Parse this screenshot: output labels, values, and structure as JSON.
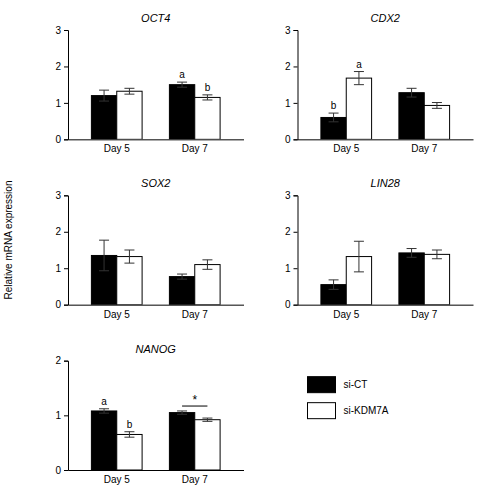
{
  "chart_data": [
    {
      "type": "bar",
      "title": "OCT4",
      "categories": [
        "Day 5",
        "Day 7"
      ],
      "series": [
        {
          "name": "si-CT",
          "color": "#000000",
          "values": [
            1.2,
            1.5
          ],
          "errors": [
            0.15,
            0.07
          ]
        },
        {
          "name": "si-KDM7A",
          "color": "#ffffff",
          "values": [
            1.32,
            1.15
          ],
          "errors": [
            0.08,
            0.07
          ]
        }
      ],
      "ylim": [
        0,
        3
      ],
      "yticks": [
        0,
        1,
        2,
        3
      ],
      "annotations": [
        {
          "text": "a",
          "x": "Day 7",
          "series": 0
        },
        {
          "text": "b",
          "x": "Day 7",
          "series": 1
        }
      ]
    },
    {
      "type": "bar",
      "title": "CDX2",
      "categories": [
        "Day 5",
        "Day 7"
      ],
      "series": [
        {
          "color": "#000000",
          "values": [
            0.6,
            1.28
          ],
          "errors": [
            0.12,
            0.12
          ]
        },
        {
          "color": "#ffffff",
          "values": [
            1.68,
            0.93
          ],
          "errors": [
            0.18,
            0.08
          ]
        }
      ],
      "ylim": [
        0,
        3
      ],
      "yticks": [
        0,
        1,
        2,
        3
      ],
      "annotations": [
        {
          "text": "b",
          "x": "Day 5",
          "series": 0
        },
        {
          "text": "a",
          "x": "Day 5",
          "series": 1
        }
      ]
    },
    {
      "type": "bar",
      "title": "SOX2",
      "categories": [
        "Day 5",
        "Day 7"
      ],
      "series": [
        {
          "color": "#000000",
          "values": [
            1.35,
            0.77
          ],
          "errors": [
            0.42,
            0.07
          ]
        },
        {
          "color": "#ffffff",
          "values": [
            1.32,
            1.1
          ],
          "errors": [
            0.18,
            0.13
          ]
        }
      ],
      "ylim": [
        0,
        3
      ],
      "yticks": [
        0,
        1,
        2,
        3
      ]
    },
    {
      "type": "bar",
      "title": "LIN28",
      "categories": [
        "Day 5",
        "Day 7"
      ],
      "series": [
        {
          "color": "#000000",
          "values": [
            0.55,
            1.42
          ],
          "errors": [
            0.13,
            0.12
          ]
        },
        {
          "color": "#ffffff",
          "values": [
            1.32,
            1.38
          ],
          "errors": [
            0.42,
            0.12
          ]
        }
      ],
      "ylim": [
        0,
        3
      ],
      "yticks": [
        0,
        1,
        2,
        3
      ]
    },
    {
      "type": "bar",
      "title": "NANOG",
      "categories": [
        "Day 5",
        "Day 7"
      ],
      "series": [
        {
          "color": "#000000",
          "values": [
            1.08,
            1.05
          ],
          "errors": [
            0.04,
            0.03
          ]
        },
        {
          "color": "#ffffff",
          "values": [
            0.65,
            0.92
          ],
          "errors": [
            0.05,
            0.03
          ]
        }
      ],
      "ylim": [
        0,
        2
      ],
      "yticks": [
        0,
        1,
        2
      ],
      "annotations": [
        {
          "text": "a",
          "x": "Day 5",
          "series": 0
        },
        {
          "text": "b",
          "x": "Day 5",
          "series": 1
        },
        {
          "text": "*",
          "x": "Day 7",
          "y": 1.17
        }
      ]
    }
  ],
  "ylabel": "Relative mRNA expression"
}
